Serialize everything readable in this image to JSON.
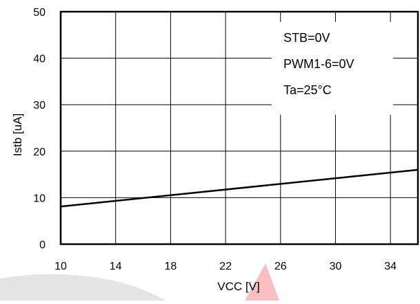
{
  "chart_data": {
    "type": "line",
    "title": "",
    "xlabel": "VCC [V]",
    "ylabel": "Istb [uA]",
    "xlim": [
      10,
      36
    ],
    "ylim": [
      0,
      50
    ],
    "x_ticks": [
      10,
      14,
      18,
      22,
      26,
      30,
      34
    ],
    "x_tick_labels": [
      "10",
      "14",
      "18",
      "22",
      "26",
      "30",
      "34"
    ],
    "y_ticks": [
      0,
      10,
      20,
      30,
      40,
      50
    ],
    "y_tick_labels": [
      "0",
      "10",
      "20",
      "30",
      "40",
      "50"
    ],
    "grid": true,
    "legend": "none",
    "annotations": [
      "STB=0V",
      "PWM1-6=0V",
      "Ta=25°C"
    ],
    "series": [
      {
        "x": [
          10,
          36
        ],
        "y": [
          8.1,
          16.0
        ],
        "color": "#000000"
      }
    ]
  }
}
